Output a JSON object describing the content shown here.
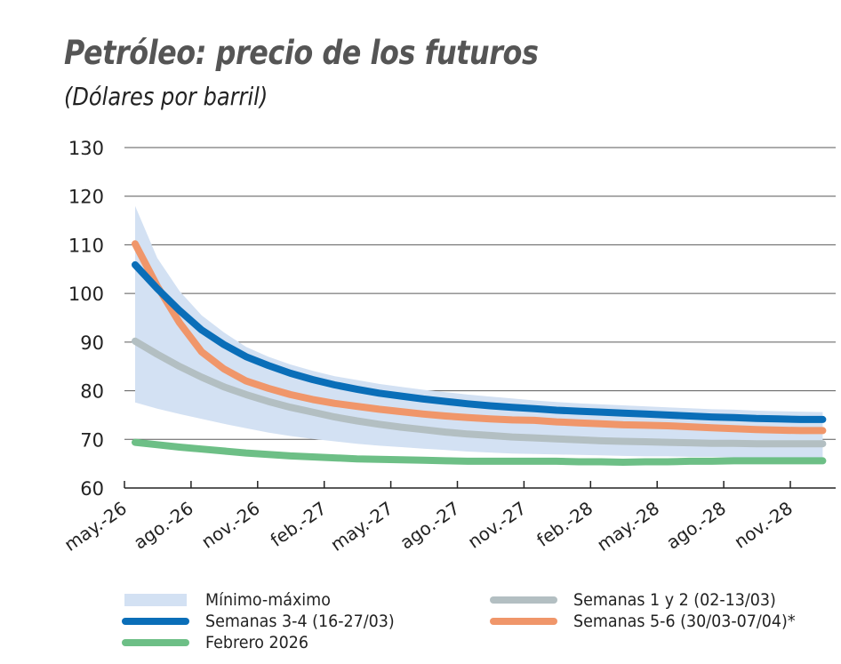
{
  "chart_data": {
    "type": "line",
    "title": "Petróleo: precio de los futuros",
    "subtitle": "(Dólares por barril)",
    "xlabel": "",
    "ylabel": "",
    "ylim": [
      60,
      130
    ],
    "yticks": [
      60,
      70,
      80,
      90,
      100,
      110,
      120,
      130
    ],
    "grid": true,
    "x_tick_labels": [
      "may.-26",
      "ago.-26",
      "nov.-26",
      "feb.-27",
      "may.-27",
      "ago.-27",
      "nov.-27",
      "feb.-28",
      "may.-28",
      "ago.-28",
      "nov.-28"
    ],
    "x": [
      "may-26",
      "jun-26",
      "jul-26",
      "ago-26",
      "sep-26",
      "oct-26",
      "nov-26",
      "dic-26",
      "ene-27",
      "feb-27",
      "mar-27",
      "abr-27",
      "may-27",
      "jun-27",
      "jul-27",
      "ago-27",
      "sep-27",
      "oct-27",
      "nov-27",
      "dic-27",
      "ene-28",
      "feb-28",
      "mar-28",
      "abr-28",
      "may-28",
      "jun-28",
      "jul-28",
      "ago-28",
      "sep-28",
      "oct-28",
      "nov-28",
      "dic-28"
    ],
    "band": {
      "name": "Mínimo-máximo",
      "color": "#d3e1f3",
      "max": [
        118,
        107.3,
        100.5,
        95.5,
        92,
        89,
        87,
        85.4,
        84.1,
        83,
        82.2,
        81.4,
        80.8,
        80.2,
        79.7,
        79.2,
        78.8,
        78.4,
        78.0,
        77.7,
        77.4,
        77.2,
        77.0,
        76.8,
        76.6,
        76.4,
        76.2,
        76.1,
        75.9,
        75.8,
        75.7,
        75.6
      ],
      "min": [
        77.6,
        76.3,
        75.2,
        74.2,
        73.2,
        72.3,
        71.4,
        70.7,
        70.1,
        69.6,
        69.1,
        68.7,
        68.4,
        68.1,
        67.8,
        67.5,
        67.3,
        67.1,
        67.0,
        66.9,
        66.8,
        66.7,
        66.6,
        66.5,
        66.5,
        66.4,
        66.4,
        66.3,
        66.3,
        66.2,
        66.2,
        66.2
      ]
    },
    "series": [
      {
        "name": "Semanas 1 y 2 (02-13/03)",
        "color": "#b3bfc2",
        "values": [
          90.2,
          87.5,
          85,
          82.8,
          80.8,
          79.2,
          77.8,
          76.6,
          75.6,
          74.6,
          73.8,
          73.1,
          72.5,
          72.0,
          71.5,
          71.1,
          70.8,
          70.5,
          70.3,
          70.1,
          69.9,
          69.7,
          69.6,
          69.5,
          69.4,
          69.3,
          69.2,
          69.2,
          69.1,
          69.1,
          69.1,
          69.1
        ]
      },
      {
        "name": "Febrero 2026",
        "color": "#6dbf86",
        "values": [
          69.4,
          68.9,
          68.4,
          68.0,
          67.6,
          67.2,
          66.9,
          66.6,
          66.4,
          66.2,
          66.0,
          65.9,
          65.8,
          65.7,
          65.6,
          65.5,
          65.5,
          65.5,
          65.5,
          65.5,
          65.4,
          65.4,
          65.3,
          65.4,
          65.4,
          65.5,
          65.5,
          65.6,
          65.6,
          65.6,
          65.6,
          65.6
        ]
      },
      {
        "name": "Semanas 5-6 (30/03-07/04)*",
        "color": "#f0966a",
        "values": [
          110.2,
          101.5,
          94,
          88,
          84.5,
          82,
          80.5,
          79.2,
          78.2,
          77.4,
          76.8,
          76.2,
          75.7,
          75.2,
          74.8,
          74.5,
          74.2,
          74.0,
          73.9,
          73.6,
          73.4,
          73.2,
          73.0,
          72.9,
          72.8,
          72.6,
          72.4,
          72.2,
          72.0,
          71.9,
          71.8,
          71.8
        ]
      },
      {
        "name": "Semanas 3-4 (16-27/03)",
        "color": "#0a6eb8",
        "values": [
          105.9,
          101,
          96.5,
          92.5,
          89.5,
          87,
          85.2,
          83.6,
          82.3,
          81.2,
          80.3,
          79.5,
          78.9,
          78.3,
          77.8,
          77.3,
          76.9,
          76.6,
          76.3,
          76.0,
          75.8,
          75.6,
          75.4,
          75.2,
          75.0,
          74.8,
          74.6,
          74.5,
          74.3,
          74.2,
          74.1,
          74.1
        ]
      }
    ],
    "legend": {
      "placement": "bottom",
      "items": [
        {
          "label": "Mínimo-máximo",
          "kind": "band",
          "color": "#d3e1f3"
        },
        {
          "label": "Semanas 1 y 2 (02-13/03)",
          "kind": "line",
          "color": "#b3bfc2"
        },
        {
          "label": "Semanas 3-4 (16-27/03)",
          "kind": "line",
          "color": "#0a6eb8"
        },
        {
          "label": "Semanas 5-6 (30/03-07/04)*",
          "kind": "line",
          "color": "#f0966a"
        },
        {
          "label": "Febrero 2026",
          "kind": "line",
          "color": "#6dbf86"
        }
      ]
    }
  }
}
